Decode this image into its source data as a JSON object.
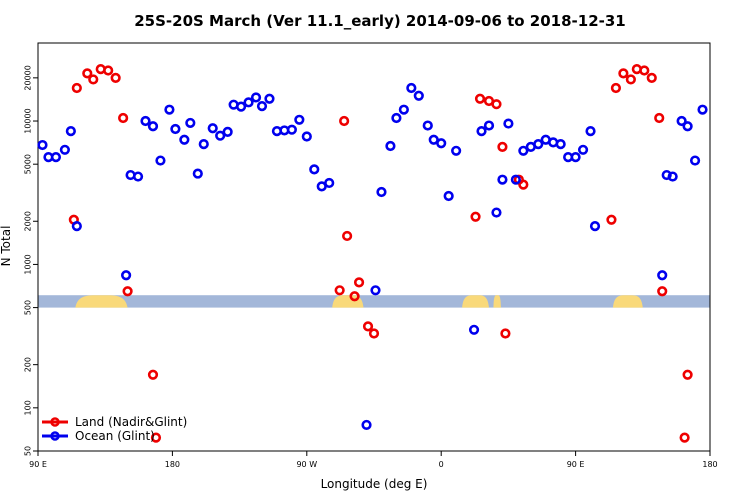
{
  "chart_data": {
    "type": "scatter",
    "title": "25S-20S March (Ver 11.1_early)   2014-09-06 to 2018-12-31",
    "xlabel": "Longitude (deg E)",
    "ylabel": "N Total",
    "y_scale": "log",
    "ylim": [
      50,
      35000
    ],
    "x_ticks": [
      {
        "pos": 90,
        "label": "90 E"
      },
      {
        "pos": 180,
        "label": "180"
      },
      {
        "pos": 270,
        "label": "90 W"
      },
      {
        "pos": 360,
        "label": "0"
      },
      {
        "pos": 450,
        "label": "90 E"
      },
      {
        "pos": 540,
        "label": "180"
      }
    ],
    "xlim": [
      90,
      540
    ],
    "y_ticks": [
      {
        "value": 50,
        "label": "50"
      },
      {
        "value": 100,
        "label": "100"
      },
      {
        "value": 200,
        "label": "200"
      },
      {
        "value": 500,
        "label": "500"
      },
      {
        "value": 1000,
        "label": "1000"
      },
      {
        "value": 2000,
        "label": "2000"
      },
      {
        "value": 5000,
        "label": "5000"
      },
      {
        "value": 10000,
        "label": "10000"
      },
      {
        "value": 20000,
        "label": "20000"
      }
    ],
    "land_strip": {
      "y_low": 500,
      "y_high": 610,
      "ocean_color": "#a3b7d9",
      "land_color": "#f9d97a",
      "land_segments": [
        [
          115,
          150
        ],
        [
          287,
          308
        ],
        [
          374,
          392
        ],
        [
          395,
          400
        ],
        [
          475,
          495
        ]
      ]
    },
    "series": [
      {
        "name": "Land (Nadir&Glint)",
        "color": "#ee0000",
        "points": [
          [
            114,
            2050
          ],
          [
            116,
            17000
          ],
          [
            123,
            21500
          ],
          [
            127,
            19500
          ],
          [
            132,
            23000
          ],
          [
            137,
            22500
          ],
          [
            142,
            20000
          ],
          [
            147,
            10500
          ],
          [
            150,
            650
          ],
          [
            167,
            170
          ],
          [
            169,
            62
          ],
          [
            292,
            660
          ],
          [
            295,
            10000
          ],
          [
            297,
            1580
          ],
          [
            302,
            600
          ],
          [
            305,
            750
          ],
          [
            311,
            370
          ],
          [
            315,
            330
          ],
          [
            383,
            2150
          ],
          [
            386,
            14300
          ],
          [
            392,
            13800
          ],
          [
            397,
            13100
          ],
          [
            401,
            6600
          ],
          [
            403,
            330
          ],
          [
            412,
            3900
          ],
          [
            415,
            3600
          ],
          [
            474,
            2050
          ],
          [
            477,
            17000
          ],
          [
            482,
            21500
          ],
          [
            487,
            19500
          ],
          [
            491,
            23000
          ],
          [
            496,
            22500
          ],
          [
            501,
            20000
          ],
          [
            506,
            10500
          ],
          [
            508,
            650
          ],
          [
            523,
            62
          ],
          [
            525,
            170
          ]
        ]
      },
      {
        "name": "Ocean (Glint)",
        "color": "#0000ee",
        "points": [
          [
            93,
            6800
          ],
          [
            97,
            5600
          ],
          [
            102,
            5600
          ],
          [
            108,
            6300
          ],
          [
            112,
            8500
          ],
          [
            116,
            1850
          ],
          [
            149,
            840
          ],
          [
            152,
            4200
          ],
          [
            157,
            4100
          ],
          [
            162,
            10000
          ],
          [
            167,
            9200
          ],
          [
            172,
            5300
          ],
          [
            178,
            12000
          ],
          [
            182,
            8800
          ],
          [
            188,
            7400
          ],
          [
            192,
            9700
          ],
          [
            197,
            4300
          ],
          [
            201,
            6900
          ],
          [
            207,
            8900
          ],
          [
            212,
            7900
          ],
          [
            217,
            8400
          ],
          [
            221,
            13000
          ],
          [
            226,
            12600
          ],
          [
            231,
            13500
          ],
          [
            236,
            14600
          ],
          [
            240,
            12700
          ],
          [
            245,
            14300
          ],
          [
            250,
            8500
          ],
          [
            255,
            8600
          ],
          [
            260,
            8700
          ],
          [
            265,
            10200
          ],
          [
            270,
            7800
          ],
          [
            275,
            4600
          ],
          [
            280,
            3500
          ],
          [
            285,
            3700
          ],
          [
            310,
            76
          ],
          [
            316,
            660
          ],
          [
            320,
            3200
          ],
          [
            326,
            6700
          ],
          [
            330,
            10500
          ],
          [
            335,
            12000
          ],
          [
            340,
            17000
          ],
          [
            345,
            15000
          ],
          [
            351,
            9300
          ],
          [
            355,
            7400
          ],
          [
            360,
            7000
          ],
          [
            365,
            3000
          ],
          [
            370,
            6200
          ],
          [
            382,
            350
          ],
          [
            387,
            8500
          ],
          [
            392,
            9300
          ],
          [
            397,
            2300
          ],
          [
            401,
            3900
          ],
          [
            405,
            9600
          ],
          [
            410,
            3900
          ],
          [
            415,
            6200
          ],
          [
            420,
            6600
          ],
          [
            425,
            6900
          ],
          [
            430,
            7400
          ],
          [
            435,
            7100
          ],
          [
            440,
            6900
          ],
          [
            445,
            5600
          ],
          [
            450,
            5600
          ],
          [
            455,
            6300
          ],
          [
            460,
            8500
          ],
          [
            463,
            1850
          ],
          [
            508,
            840
          ],
          [
            511,
            4200
          ],
          [
            515,
            4100
          ],
          [
            521,
            10000
          ],
          [
            525,
            9200
          ],
          [
            530,
            5300
          ],
          [
            535,
            12000
          ]
        ]
      }
    ],
    "legend": {
      "placement": "bottom-left",
      "entries": [
        "Land (Nadir&Glint)",
        "Ocean (Glint)"
      ]
    }
  }
}
